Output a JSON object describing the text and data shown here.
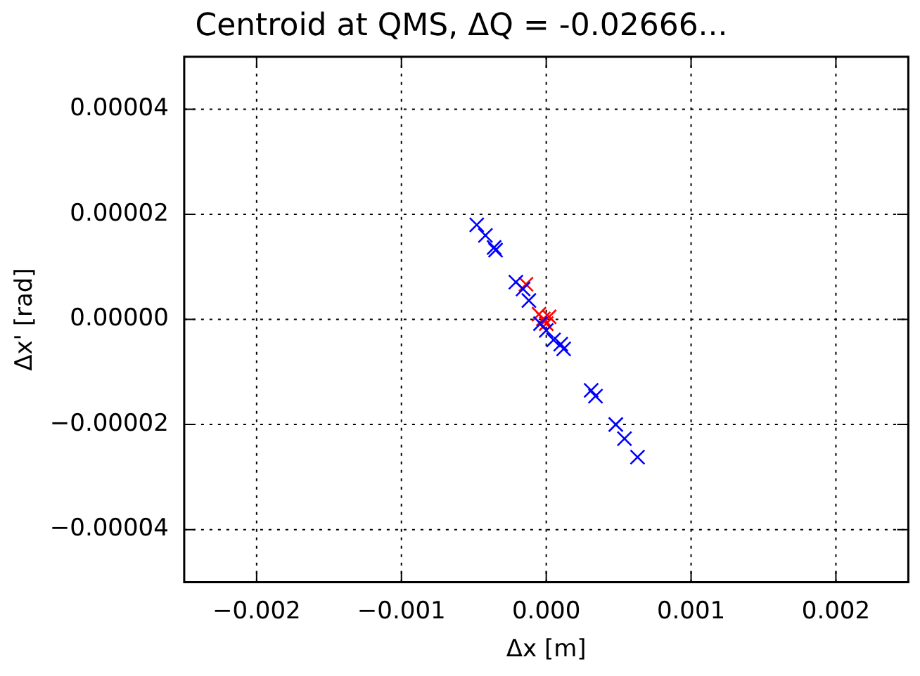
{
  "chart_data": {
    "type": "scatter",
    "title": "Centroid at QMS, ΔQ = -0.02666...",
    "xlabel": "Δx [m]",
    "ylabel": "Δx' [rad]",
    "marker": "cross",
    "grid": true,
    "legend": false,
    "xlim": [
      -0.0025,
      0.0025
    ],
    "ylim": [
      -5e-05,
      5e-05
    ],
    "xticks": [
      {
        "value": -0.002,
        "label": "−0.002"
      },
      {
        "value": -0.001,
        "label": "−0.001"
      },
      {
        "value": 0,
        "label": "0.000"
      },
      {
        "value": 0.001,
        "label": "0.001"
      },
      {
        "value": 0.002,
        "label": "0.002"
      }
    ],
    "yticks": [
      {
        "value": -4e-05,
        "label": "−0.00004"
      },
      {
        "value": -2e-05,
        "label": "−0.00002"
      },
      {
        "value": 0,
        "label": "0.00000"
      },
      {
        "value": 2e-05,
        "label": "0.00002"
      },
      {
        "value": 4e-05,
        "label": "0.00004"
      }
    ],
    "series": [
      {
        "color": "#0000ff",
        "x": [
          -0.00048,
          -0.00042,
          -0.00036,
          -0.00035,
          -0.00021,
          -0.00016,
          -0.00012,
          -4e-05,
          0,
          5e-05,
          0.0001,
          0.00012,
          0.00031,
          0.00034,
          0.00048,
          0.00054,
          0.00063
        ],
        "values": [
          1.8e-05,
          1.6e-05,
          1.37e-05,
          1.32e-05,
          7.1e-06,
          5.8e-06,
          3.6e-06,
          -8e-07,
          -2.1e-06,
          -3.9e-06,
          -4.7e-06,
          -5.6e-06,
          -1.35e-05,
          -1.46e-05,
          -2e-05,
          -2.27e-05,
          -2.62e-05
        ]
      },
      {
        "color": "#ff0000",
        "x": [
          -0.00014,
          -5e-05,
          -2e-05,
          0,
          2e-05
        ],
        "values": [
          6.7e-06,
          1e-06,
          1e-07,
          -8e-07,
          5e-07
        ]
      }
    ]
  }
}
